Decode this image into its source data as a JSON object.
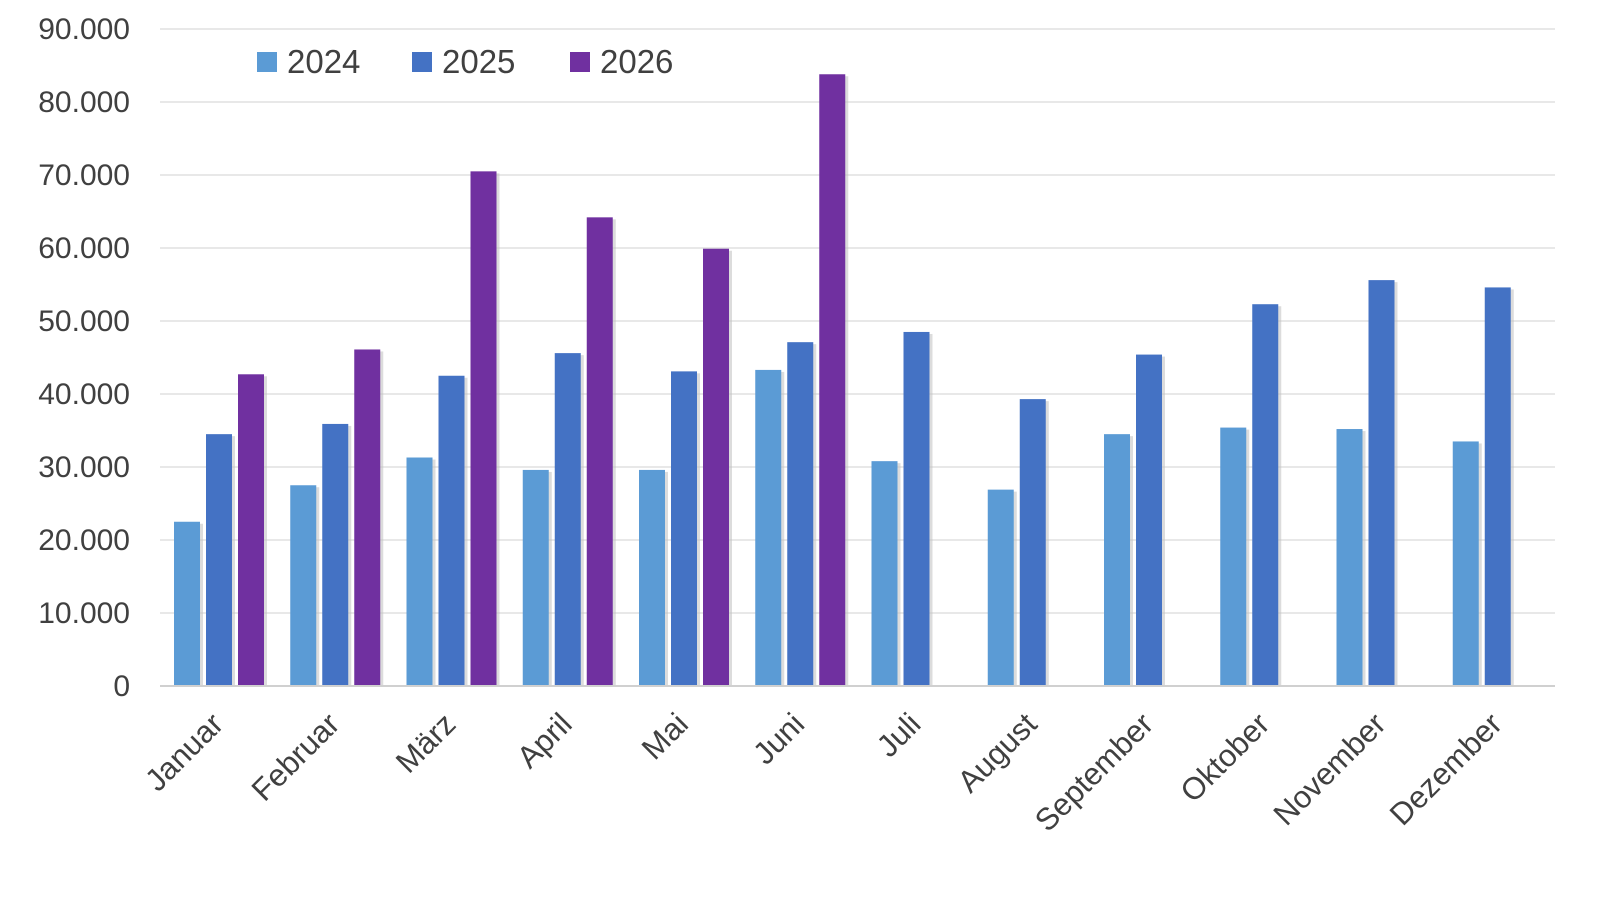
{
  "chart_data": {
    "type": "bar",
    "categories": [
      "Januar",
      "Februar",
      "März",
      "April",
      "Mai",
      "Juni",
      "Juli",
      "August",
      "September",
      "Oktober",
      "November",
      "Dezember"
    ],
    "series": [
      {
        "name": "2024",
        "color": "#5B9BD5",
        "values": [
          22500,
          27500,
          31300,
          29600,
          29600,
          43300,
          30800,
          26900,
          34500,
          35400,
          35200,
          33500
        ]
      },
      {
        "name": "2025",
        "color": "#4472C4",
        "values": [
          34500,
          35900,
          42500,
          45600,
          43100,
          47100,
          48500,
          39300,
          45400,
          52300,
          55600,
          54600
        ]
      },
      {
        "name": "2026",
        "color": "#7030A0",
        "values": [
          42700,
          46100,
          70500,
          64200,
          59900,
          83800,
          null,
          null,
          null,
          null,
          null,
          null
        ]
      }
    ],
    "ylim": [
      0,
      90000
    ],
    "yticks": [
      "0",
      "10.000",
      "20.000",
      "30.000",
      "40.000",
      "50.000",
      "60.000",
      "70.000",
      "80.000",
      "90.000"
    ],
    "grid": true,
    "legend": "top-left",
    "title": "",
    "xlabel": "",
    "ylabel": ""
  }
}
